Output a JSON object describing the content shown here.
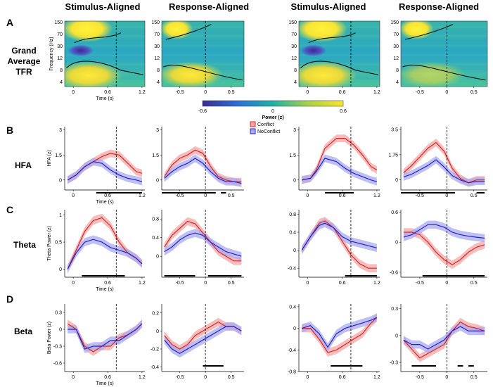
{
  "figure": {
    "column_titles": [
      "Stimulus-Aligned",
      "Response-Aligned",
      "Stimulus-Aligned",
      "Response-Aligned"
    ],
    "panel_letters": [
      "A",
      "B",
      "C",
      "D"
    ],
    "row_labels": {
      "tfr_line1": "Grand",
      "tfr_line2": "Average",
      "tfr_line3": "TFR",
      "hfa": "HFA",
      "theta": "Theta",
      "beta": "Beta"
    },
    "x_axis_label": "Time (s)",
    "colors": {
      "conflict": "#d62728",
      "noconflict": "#2323c8",
      "conflict_band": "#f4a6a6",
      "noconflict_band": "#aaaaf0"
    }
  },
  "chart_data": [
    {
      "id": "tfr",
      "type": "heatmap",
      "title": "Grand Average TFR",
      "ylabel": "Frequency (Hz)",
      "y_ticks": [
        "150",
        "70",
        "30",
        "12",
        "8",
        "4"
      ],
      "colorbar": {
        "label": "Power (z)",
        "min": -0.6,
        "max": 0.6,
        "tick_labels": [
          "-0.6",
          "0",
          "0.6"
        ]
      },
      "columns": [
        {
          "x_ticks": [
            "0",
            "0.6",
            "1.2"
          ],
          "xlim": [
            -0.15,
            1.25
          ],
          "event_line": 0.75
        },
        {
          "x_ticks": [
            "-0.5",
            "0",
            "0.5"
          ],
          "xlim": [
            -0.85,
            0.75
          ],
          "event_line": 0
        },
        {
          "x_ticks": [
            "0",
            "0.6",
            "1.2"
          ],
          "xlim": [
            -0.15,
            1.25
          ],
          "event_line": 0.75
        },
        {
          "x_ticks": [
            "-0.5",
            "0",
            "0.5"
          ],
          "xlim": [
            -0.85,
            0.75
          ],
          "event_line": 0
        }
      ]
    },
    {
      "id": "hfa",
      "type": "line",
      "ylabel": "HFA (z)",
      "legend": [
        "Conflict",
        "NoConflict"
      ],
      "panels": [
        {
          "x_ticks": [
            "0",
            "0.6",
            "1.2"
          ],
          "y_ticks": [
            "3",
            "1.5",
            "0"
          ],
          "ylim": [
            -0.6,
            3.2
          ],
          "xlim": [
            -0.15,
            1.25
          ],
          "event_line": 0.75,
          "x": [
            -0.1,
            0.05,
            0.2,
            0.35,
            0.5,
            0.65,
            0.8,
            0.95,
            1.1,
            1.2
          ],
          "series": [
            {
              "name": "Conflict",
              "values": [
                0,
                0.3,
                0.8,
                1.1,
                1.4,
                1.6,
                1.5,
                1.0,
                0.5,
                0.4
              ]
            },
            {
              "name": "NoConflict",
              "values": [
                0,
                0.3,
                0.8,
                1.1,
                1.0,
                0.6,
                0.3,
                0.1,
                0.0,
                -0.1
              ]
            }
          ],
          "significance_bars": [
            [
              0.4,
              1.2
            ]
          ]
        },
        {
          "x_ticks": [
            "-0.5",
            "0",
            "0.5"
          ],
          "y_ticks": [
            "3",
            "1.5",
            "0"
          ],
          "ylim": [
            -0.6,
            3.2
          ],
          "xlim": [
            -0.85,
            0.75
          ],
          "event_line": 0,
          "x": [
            -0.8,
            -0.65,
            -0.5,
            -0.35,
            -0.2,
            -0.05,
            0.1,
            0.25,
            0.4,
            0.55,
            0.7
          ],
          "series": [
            {
              "name": "Conflict",
              "values": [
                0.2,
                0.9,
                1.3,
                1.5,
                1.8,
                1.6,
                0.8,
                0.2,
                0.0,
                -0.1,
                -0.1
              ]
            },
            {
              "name": "NoConflict",
              "values": [
                0.1,
                0.5,
                0.8,
                1.0,
                1.3,
                1.0,
                0.5,
                0.1,
                -0.1,
                -0.1,
                -0.2
              ]
            }
          ],
          "significance_bars": [
            [
              -0.85,
              0.2
            ],
            [
              0.3,
              0.4
            ]
          ]
        },
        {
          "x_ticks": [
            "0",
            "0.6",
            "1.2"
          ],
          "y_ticks": [
            "3",
            "1.5",
            "0"
          ],
          "ylim": [
            -0.6,
            3.2
          ],
          "xlim": [
            -0.15,
            1.25
          ],
          "event_line": 0.75,
          "x": [
            -0.1,
            0.05,
            0.15,
            0.3,
            0.5,
            0.65,
            0.8,
            0.95,
            1.1,
            1.2
          ],
          "series": [
            {
              "name": "Conflict",
              "values": [
                0,
                0.1,
                0.6,
                1.9,
                2.5,
                2.5,
                2.1,
                1.5,
                0.8,
                0.6
              ]
            },
            {
              "name": "NoConflict",
              "values": [
                0,
                0.1,
                0.5,
                1.3,
                1.1,
                0.7,
                0.4,
                0.2,
                0.0,
                -0.1
              ]
            }
          ],
          "significance_bars": [
            [
              0.3,
              0.8
            ]
          ]
        },
        {
          "x_ticks": [
            "-0.5",
            "0",
            "0.5"
          ],
          "y_ticks": [
            "3.5",
            "1.75",
            "0"
          ],
          "ylim": [
            -0.7,
            3.7
          ],
          "xlim": [
            -0.85,
            0.75
          ],
          "event_line": 0,
          "x": [
            -0.8,
            -0.65,
            -0.5,
            -0.35,
            -0.2,
            -0.05,
            0.1,
            0.25,
            0.4,
            0.55,
            0.7
          ],
          "series": [
            {
              "name": "Conflict",
              "values": [
                0.5,
                1.0,
                1.6,
                2.2,
                2.6,
                2.0,
                0.8,
                0.1,
                -0.2,
                0.0,
                0.0
              ]
            },
            {
              "name": "NoConflict",
              "values": [
                0.2,
                0.4,
                0.7,
                1.0,
                1.4,
                0.9,
                0.3,
                0.0,
                -0.2,
                -0.1,
                -0.1
              ]
            }
          ],
          "significance_bars": [
            [
              -0.85,
              0.15
            ],
            [
              0.55,
              0.7
            ]
          ]
        }
      ]
    },
    {
      "id": "theta",
      "type": "line",
      "ylabel": "Theta Power (z)",
      "panels": [
        {
          "x_ticks": [
            "0",
            "0.6",
            "1.2"
          ],
          "y_ticks": [
            "1",
            "0.5",
            "0"
          ],
          "ylim": [
            -0.15,
            1.1
          ],
          "xlim": [
            -0.15,
            1.25
          ],
          "event_line": 0.75,
          "x": [
            -0.1,
            0.05,
            0.2,
            0.35,
            0.5,
            0.65,
            0.8,
            0.95,
            1.1,
            1.2
          ],
          "series": [
            {
              "name": "Conflict",
              "values": [
                0.0,
                0.35,
                0.7,
                0.9,
                0.95,
                0.8,
                0.5,
                0.3,
                0.2,
                0.1
              ]
            },
            {
              "name": "NoConflict",
              "values": [
                0.0,
                0.3,
                0.5,
                0.55,
                0.5,
                0.4,
                0.35,
                0.3,
                0.2,
                0.1
              ]
            }
          ],
          "significance_bars": [
            [
              0.15,
              0.9
            ]
          ]
        },
        {
          "x_ticks": [
            "-0.5",
            "0",
            "0.5"
          ],
          "y_ticks": [
            "0.8",
            "0.4",
            "0"
          ],
          "ylim": [
            -0.45,
            1.0
          ],
          "xlim": [
            -0.85,
            0.75
          ],
          "event_line": 0,
          "x": [
            -0.8,
            -0.65,
            -0.5,
            -0.35,
            -0.2,
            -0.05,
            0.1,
            0.25,
            0.4,
            0.55,
            0.7
          ],
          "series": [
            {
              "name": "Conflict",
              "values": [
                0.2,
                0.45,
                0.6,
                0.75,
                0.7,
                0.5,
                0.3,
                0.1,
                0.0,
                -0.1,
                -0.1
              ]
            },
            {
              "name": "NoConflict",
              "values": [
                0.1,
                0.2,
                0.35,
                0.45,
                0.5,
                0.45,
                0.3,
                0.2,
                0.1,
                0.05,
                0.0
              ]
            }
          ],
          "significance_bars": [
            [
              -0.8,
              -0.2
            ],
            [
              0.05,
              0.7
            ]
          ]
        },
        {
          "x_ticks": [
            "0",
            "0.6",
            "1.2"
          ],
          "y_ticks": [
            "0.8",
            "0.4",
            "0",
            "-0.4"
          ],
          "ylim": [
            -0.6,
            0.9
          ],
          "xlim": [
            -0.15,
            1.25
          ],
          "event_line": 0.75,
          "x": [
            -0.1,
            0.05,
            0.2,
            0.3,
            0.45,
            0.6,
            0.75,
            0.9,
            1.05,
            1.2
          ],
          "series": [
            {
              "name": "Conflict",
              "values": [
                0.0,
                0.3,
                0.6,
                0.65,
                0.5,
                0.2,
                -0.1,
                -0.3,
                -0.4,
                -0.4
              ]
            },
            {
              "name": "NoConflict",
              "values": [
                0.0,
                0.3,
                0.55,
                0.6,
                0.5,
                0.3,
                0.2,
                0.15,
                0.1,
                0.05
              ]
            }
          ],
          "significance_bars": [
            [
              0.65,
              1.2
            ]
          ]
        },
        {
          "x_ticks": [
            "-0.5",
            "0",
            "0.5"
          ],
          "y_ticks": [
            "0.6",
            "0",
            "-0.6"
          ],
          "ylim": [
            -0.7,
            0.65
          ],
          "xlim": [
            -0.85,
            0.75
          ],
          "event_line": 0,
          "x": [
            -0.8,
            -0.65,
            -0.5,
            -0.35,
            -0.2,
            -0.05,
            0.1,
            0.25,
            0.4,
            0.55,
            0.7
          ],
          "series": [
            {
              "name": "Conflict",
              "values": [
                0.2,
                0.2,
                0.15,
                0.0,
                -0.2,
                -0.35,
                -0.45,
                -0.35,
                -0.2,
                -0.1,
                -0.05
              ]
            },
            {
              "name": "NoConflict",
              "values": [
                0.1,
                0.15,
                0.25,
                0.35,
                0.35,
                0.3,
                0.2,
                0.15,
                0.12,
                0.1,
                0.08
              ]
            }
          ],
          "significance_bars": [
            [
              -0.45,
              0.7
            ]
          ]
        }
      ]
    },
    {
      "id": "beta",
      "type": "line",
      "ylabel": "Beta Power (z)",
      "panels": [
        {
          "x_ticks": [
            "0",
            "0.6",
            "1.2"
          ],
          "y_ticks": [
            "0.3",
            "0",
            "-0.3",
            "-0.6"
          ],
          "ylim": [
            -0.75,
            0.45
          ],
          "xlim": [
            -0.15,
            1.25
          ],
          "event_line": 0.75,
          "x": [
            -0.1,
            0.05,
            0.2,
            0.35,
            0.5,
            0.65,
            0.8,
            0.95,
            1.1,
            1.2
          ],
          "series": [
            {
              "name": "Conflict",
              "values": [
                0.1,
                0.0,
                -0.3,
                -0.4,
                -0.3,
                -0.3,
                -0.15,
                -0.1,
                0.0,
                0.1
              ]
            },
            {
              "name": "NoConflict",
              "values": [
                0.0,
                0.0,
                -0.35,
                -0.3,
                -0.3,
                -0.2,
                -0.2,
                -0.1,
                0.0,
                0.1
              ]
            }
          ],
          "significance_bars": []
        },
        {
          "x_ticks": [
            "-0.5",
            "0",
            "0.5"
          ],
          "y_ticks": [
            "0.2",
            "0",
            "-0.2",
            "-0.4"
          ],
          "ylim": [
            -0.45,
            0.3
          ],
          "xlim": [
            -0.85,
            0.75
          ],
          "event_line": 0,
          "x": [
            -0.8,
            -0.65,
            -0.5,
            -0.35,
            -0.2,
            -0.05,
            0.1,
            0.25,
            0.4,
            0.55,
            0.7
          ],
          "series": [
            {
              "name": "Conflict",
              "values": [
                -0.05,
                -0.15,
                -0.2,
                -0.15,
                -0.05,
                0.0,
                0.05,
                0.1,
                0.05,
                0.05,
                0.0
              ]
            },
            {
              "name": "NoConflict",
              "values": [
                -0.1,
                -0.2,
                -0.25,
                -0.2,
                -0.15,
                -0.1,
                -0.05,
                0.0,
                0.05,
                0.05,
                0.0
              ]
            }
          ],
          "significance_bars": [
            [
              -0.05,
              0.35
            ]
          ]
        },
        {
          "x_ticks": [
            "0",
            "0.6",
            "1.2"
          ],
          "y_ticks": [
            "0.4",
            "0",
            "-0.4",
            "-0.8"
          ],
          "ylim": [
            -0.8,
            0.45
          ],
          "xlim": [
            -0.15,
            1.25
          ],
          "event_line": 0.75,
          "x": [
            -0.1,
            0.05,
            0.2,
            0.35,
            0.5,
            0.65,
            0.8,
            0.95,
            1.1,
            1.2
          ],
          "series": [
            {
              "name": "Conflict",
              "values": [
                0.0,
                0.0,
                -0.2,
                -0.45,
                -0.4,
                -0.3,
                -0.2,
                -0.1,
                0.1,
                0.2
              ]
            },
            {
              "name": "NoConflict",
              "values": [
                0.0,
                0.05,
                -0.1,
                -0.35,
                -0.1,
                0.0,
                0.05,
                0.1,
                0.15,
                0.2
              ]
            }
          ],
          "significance_bars": [
            [
              0.4,
              0.95
            ]
          ]
        },
        {
          "x_ticks": [
            "-0.5",
            "0",
            "0.5"
          ],
          "y_ticks": [
            "0.3",
            "0",
            "-0.3"
          ],
          "ylim": [
            -0.4,
            0.35
          ],
          "xlim": [
            -0.85,
            0.75
          ],
          "event_line": 0,
          "x": [
            -0.8,
            -0.65,
            -0.5,
            -0.35,
            -0.2,
            -0.05,
            0.1,
            0.25,
            0.4,
            0.55,
            0.7
          ],
          "series": [
            {
              "name": "Conflict",
              "values": [
                -0.05,
                -0.15,
                -0.25,
                -0.2,
                -0.15,
                -0.1,
                0.05,
                0.15,
                0.1,
                0.08,
                0.05
              ]
            },
            {
              "name": "NoConflict",
              "values": [
                -0.05,
                -0.1,
                -0.1,
                -0.15,
                -0.1,
                -0.05,
                0.05,
                0.1,
                0.05,
                0.05,
                0.05
              ]
            }
          ],
          "significance_bars": [
            [
              -0.65,
              -0.2
            ],
            [
              0.2,
              0.3
            ],
            [
              0.4,
              0.5
            ]
          ]
        }
      ]
    }
  ]
}
